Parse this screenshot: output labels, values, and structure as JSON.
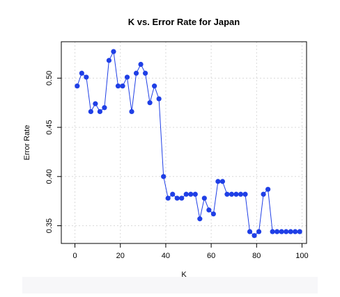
{
  "chart_data": {
    "type": "line",
    "title": "K vs. Error Rate for Japan",
    "xlabel": "K",
    "ylabel": "Error Rate",
    "xlim": [
      -6,
      102
    ],
    "ylim": [
      0.332,
      0.537
    ],
    "x_ticks": [
      0,
      20,
      40,
      60,
      80,
      100
    ],
    "y_ticks": [
      0.35,
      0.4,
      0.45,
      0.5
    ],
    "x_tick_labels": [
      "0",
      "20",
      "40",
      "60",
      "80",
      "100"
    ],
    "y_tick_labels": [
      "0.35",
      "0.40",
      "0.45",
      "0.50"
    ],
    "grid": true,
    "series": [
      {
        "color": "#1f3fe6",
        "points": [
          [
            1,
            0.492
          ],
          [
            3,
            0.505
          ],
          [
            5,
            0.501
          ],
          [
            7,
            0.466
          ],
          [
            9,
            0.474
          ],
          [
            11,
            0.466
          ],
          [
            13,
            0.47
          ],
          [
            15,
            0.518
          ],
          [
            17,
            0.527
          ],
          [
            19,
            0.492
          ],
          [
            21,
            0.492
          ],
          [
            23,
            0.501
          ],
          [
            25,
            0.466
          ],
          [
            27,
            0.505
          ],
          [
            29,
            0.514
          ],
          [
            31,
            0.505
          ],
          [
            33,
            0.475
          ],
          [
            35,
            0.492
          ],
          [
            37,
            0.479
          ],
          [
            39,
            0.4
          ],
          [
            41,
            0.378
          ],
          [
            43,
            0.382
          ],
          [
            45,
            0.378
          ],
          [
            47,
            0.378
          ],
          [
            49,
            0.382
          ],
          [
            51,
            0.382
          ],
          [
            53,
            0.382
          ],
          [
            55,
            0.357
          ],
          [
            57,
            0.378
          ],
          [
            59,
            0.366
          ],
          [
            61,
            0.362
          ],
          [
            63,
            0.395
          ],
          [
            65,
            0.395
          ],
          [
            67,
            0.382
          ],
          [
            69,
            0.382
          ],
          [
            71,
            0.382
          ],
          [
            73,
            0.382
          ],
          [
            75,
            0.382
          ],
          [
            77,
            0.344
          ],
          [
            79,
            0.34
          ],
          [
            81,
            0.344
          ],
          [
            83,
            0.382
          ],
          [
            85,
            0.387
          ],
          [
            87,
            0.344
          ],
          [
            89,
            0.344
          ],
          [
            91,
            0.344
          ],
          [
            93,
            0.344
          ],
          [
            95,
            0.344
          ],
          [
            97,
            0.344
          ],
          [
            99,
            0.344
          ]
        ]
      }
    ]
  }
}
